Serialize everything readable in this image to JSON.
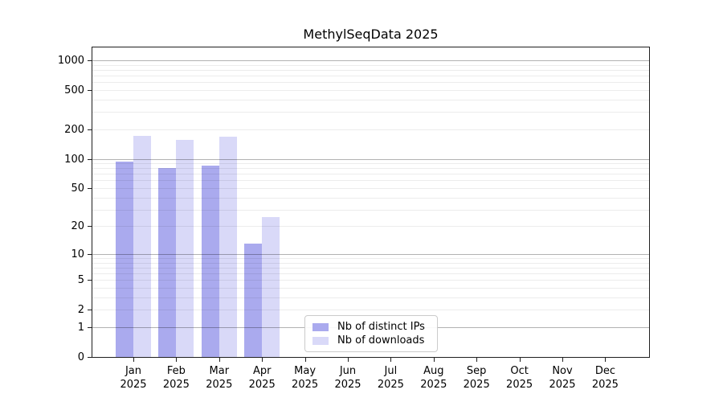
{
  "chart_data": {
    "type": "bar",
    "title": "MethylSeqData 2025",
    "y_scale": "log1p",
    "ylim": [
      0,
      1350
    ],
    "y_ticks": [
      0,
      1,
      2,
      5,
      10,
      20,
      50,
      100,
      200,
      500,
      1000
    ],
    "grid": "horizontal major+minor, drawn over bars",
    "legend_position": "inside plot, lower middle-left",
    "categories": [
      "Jan 2025",
      "Feb 2025",
      "Mar 2025",
      "Apr 2025",
      "May 2025",
      "Jun 2025",
      "Jul 2025",
      "Aug 2025",
      "Sep 2025",
      "Oct 2025",
      "Nov 2025",
      "Dec 2025"
    ],
    "series": [
      {
        "name": "Nb of distinct IPs",
        "color": "#aaaaee",
        "values": [
          93,
          80,
          86,
          13,
          0,
          0,
          0,
          0,
          0,
          0,
          0,
          0
        ]
      },
      {
        "name": "Nb of downloads",
        "color": "#d9d9f8",
        "values": [
          173,
          157,
          168,
          25,
          0,
          0,
          0,
          0,
          0,
          0,
          0,
          0
        ]
      }
    ]
  },
  "colors": {
    "background": "#ffffff",
    "frame": "#1f1f1f",
    "major_grid": "#b3b3b3",
    "minor_grid": "#ededed",
    "text": "#000000"
  }
}
